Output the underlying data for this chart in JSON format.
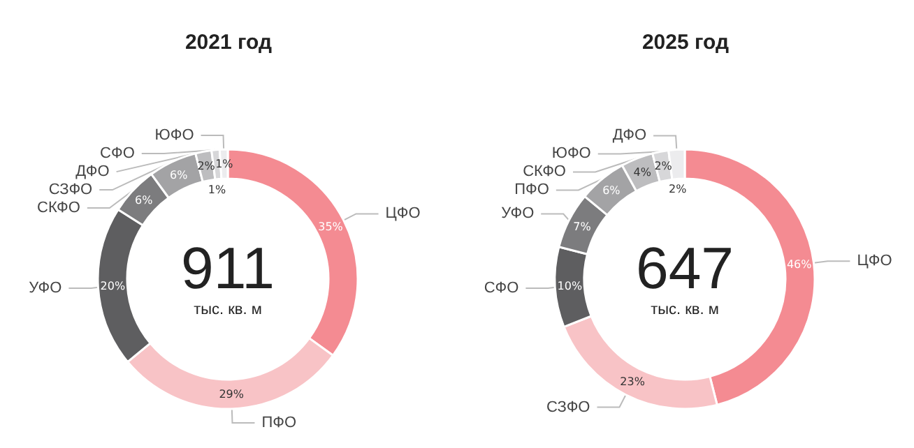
{
  "chart_data": [
    {
      "type": "donut",
      "title": "2021 год",
      "annotations": [
        "911",
        "тыс. кв. м"
      ],
      "categories": [
        "ЦФО",
        "ПФО",
        "УФО",
        "СКФО",
        "СЗФО",
        "ДФО",
        "СФО",
        "ЮФО"
      ],
      "values": [
        35,
        29,
        20,
        6,
        6,
        2,
        1,
        1
      ],
      "value_labels": [
        "35%",
        "29%",
        "20%",
        "6%",
        "6%",
        "2%",
        "1%",
        "1%"
      ],
      "colors": [
        "#f48b92",
        "#f8c3c6",
        "#5e5e60",
        "#7c7c7e",
        "#a3a3a5",
        "#bdbdbf",
        "#d7d7d9",
        "#ececee"
      ],
      "legend": false
    },
    {
      "type": "donut",
      "title": "2025 год",
      "annotations": [
        "647",
        "тыс. кв. м"
      ],
      "categories": [
        "ЦФО",
        "СЗФО",
        "СФО",
        "УФО",
        "ПФО",
        "СКФО",
        "ЮФО",
        "ДФО"
      ],
      "values": [
        46,
        23,
        10,
        7,
        6,
        4,
        2,
        2
      ],
      "value_labels": [
        "46%",
        "23%",
        "10%",
        "7%",
        "6%",
        "4%",
        "2%",
        "2%"
      ],
      "colors": [
        "#f48b92",
        "#f8c3c6",
        "#5e5e60",
        "#7c7c7e",
        "#a3a3a5",
        "#bdbdbf",
        "#d7d7d9",
        "#ececee"
      ],
      "legend": false
    }
  ]
}
